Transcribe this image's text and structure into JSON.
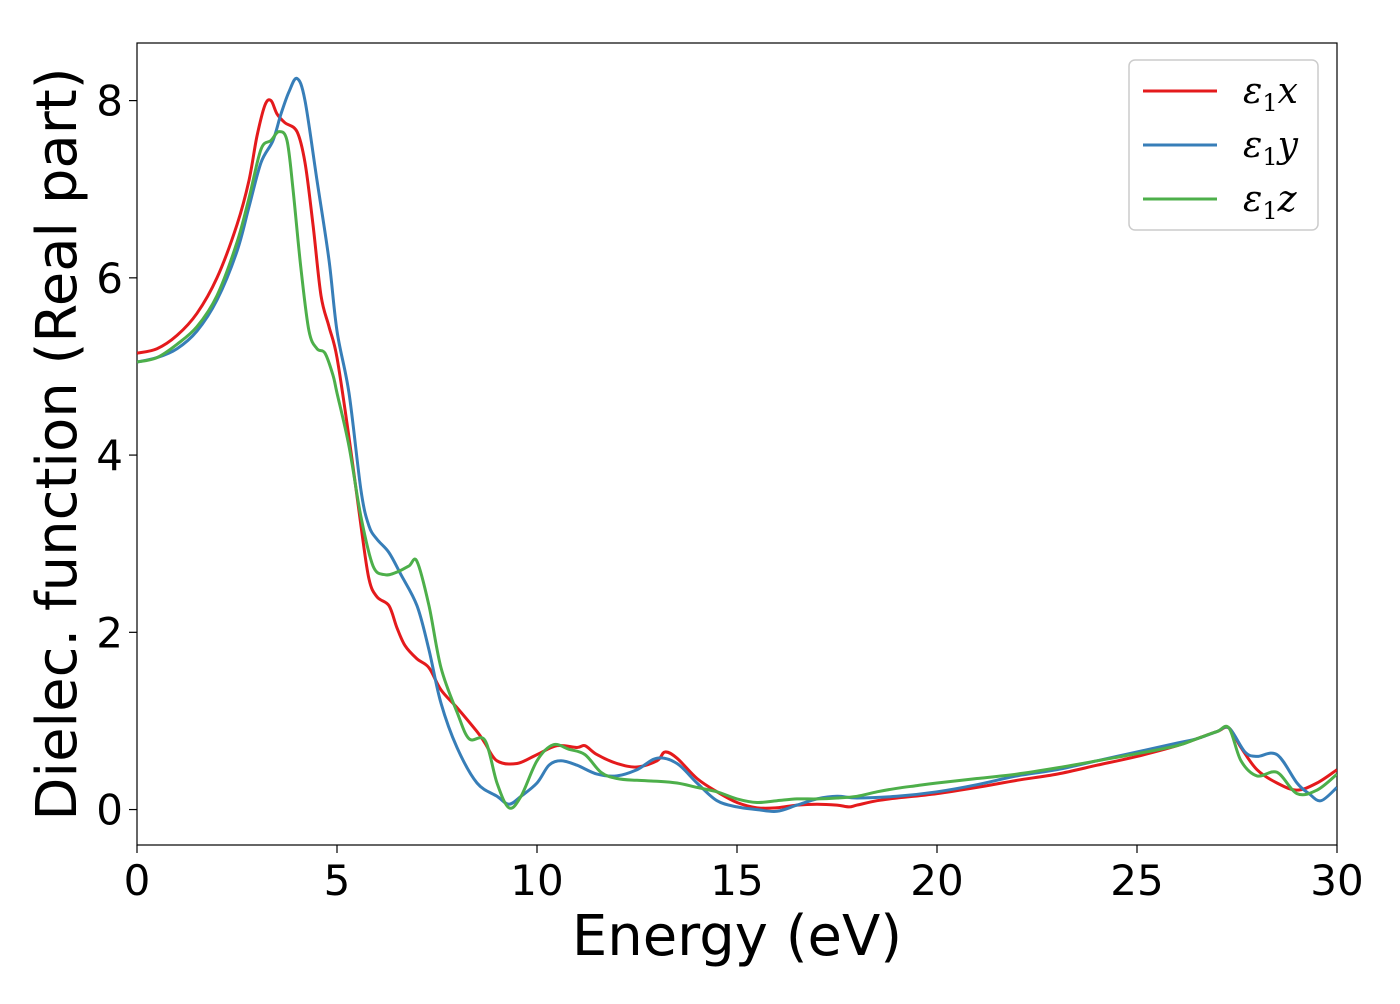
{
  "chart_data": {
    "type": "line",
    "xlabel": "Energy (eV)",
    "ylabel": "Dielec. function (Real part)",
    "xlim": [
      0,
      30
    ],
    "ylim": [
      -0.4,
      8.65
    ],
    "xticks": [
      0,
      5,
      10,
      15,
      20,
      25,
      30
    ],
    "xtick_labels": [
      "0",
      "5",
      "10",
      "15",
      "20",
      "25",
      "30"
    ],
    "yticks": [
      0,
      2,
      4,
      6,
      8
    ],
    "ytick_labels": [
      "0",
      "2",
      "4",
      "6",
      "8"
    ],
    "grid": false,
    "legend_position": "top-right",
    "series": [
      {
        "name": "ε1x",
        "label_base": "ε",
        "label_sub": "1",
        "label_suffix": "x",
        "color": "#e41a1c",
        "x": [
          0,
          0.5,
          1,
          1.5,
          2,
          2.5,
          2.8,
          3.0,
          3.2,
          3.35,
          3.5,
          3.7,
          4.0,
          4.2,
          4.4,
          4.6,
          4.8,
          5.0,
          5.3,
          5.6,
          5.8,
          6.0,
          6.3,
          6.5,
          6.7,
          7.0,
          7.3,
          7.6,
          8.0,
          8.5,
          8.7,
          9.0,
          9.5,
          10.0,
          10.5,
          11.0,
          11.2,
          11.5,
          12.0,
          12.5,
          13.0,
          13.2,
          13.5,
          14.0,
          14.5,
          15.0,
          15.5,
          16.0,
          16.5,
          17.0,
          17.5,
          17.8,
          18.0,
          18.5,
          19.0,
          20.0,
          21.0,
          22.0,
          23.0,
          24.0,
          25.0,
          26.0,
          26.5,
          27.0,
          27.3,
          27.6,
          28.0,
          28.5,
          29.0,
          29.5,
          30.0
        ],
        "values": [
          5.15,
          5.2,
          5.35,
          5.6,
          6.0,
          6.6,
          7.1,
          7.6,
          7.95,
          8.0,
          7.85,
          7.75,
          7.65,
          7.3,
          6.6,
          5.8,
          5.45,
          5.1,
          4.2,
          3.2,
          2.6,
          2.4,
          2.3,
          2.05,
          1.85,
          1.7,
          1.6,
          1.35,
          1.15,
          0.88,
          0.75,
          0.55,
          0.52,
          0.62,
          0.72,
          0.7,
          0.72,
          0.62,
          0.52,
          0.48,
          0.55,
          0.65,
          0.58,
          0.35,
          0.2,
          0.08,
          0.02,
          0.02,
          0.05,
          0.06,
          0.05,
          0.03,
          0.05,
          0.1,
          0.13,
          0.18,
          0.25,
          0.33,
          0.4,
          0.5,
          0.6,
          0.72,
          0.8,
          0.88,
          0.92,
          0.7,
          0.45,
          0.3,
          0.22,
          0.3,
          0.45
        ]
      },
      {
        "name": "ε1y",
        "label_base": "ε",
        "label_sub": "1",
        "label_suffix": "y",
        "color": "#377eb8",
        "x": [
          0,
          0.5,
          1,
          1.5,
          2,
          2.5,
          2.8,
          3.1,
          3.4,
          3.6,
          3.8,
          4.0,
          4.2,
          4.5,
          4.8,
          5.0,
          5.3,
          5.6,
          5.8,
          6.0,
          6.3,
          6.6,
          7.0,
          7.3,
          7.6,
          8.0,
          8.5,
          9.0,
          9.3,
          9.6,
          10.0,
          10.3,
          10.6,
          11.0,
          11.5,
          12.0,
          12.5,
          13.0,
          13.5,
          14.0,
          14.5,
          15.0,
          15.5,
          16.0,
          16.5,
          17.0,
          17.5,
          18.0,
          19.0,
          20.0,
          21.0,
          22.0,
          23.0,
          24.0,
          25.0,
          26.0,
          26.5,
          27.0,
          27.3,
          27.7,
          28.0,
          28.5,
          29.0,
          29.3,
          29.6,
          30.0
        ],
        "values": [
          5.05,
          5.1,
          5.2,
          5.4,
          5.75,
          6.3,
          6.8,
          7.3,
          7.55,
          7.85,
          8.1,
          8.25,
          8.0,
          7.1,
          6.2,
          5.4,
          4.7,
          3.6,
          3.2,
          3.05,
          2.9,
          2.65,
          2.3,
          1.8,
          1.2,
          0.7,
          0.3,
          0.15,
          0.06,
          0.15,
          0.3,
          0.5,
          0.55,
          0.5,
          0.4,
          0.38,
          0.45,
          0.58,
          0.52,
          0.3,
          0.1,
          0.03,
          0.0,
          -0.02,
          0.05,
          0.12,
          0.15,
          0.13,
          0.15,
          0.2,
          0.28,
          0.38,
          0.45,
          0.55,
          0.65,
          0.75,
          0.8,
          0.88,
          0.92,
          0.65,
          0.6,
          0.62,
          0.3,
          0.18,
          0.1,
          0.25
        ]
      },
      {
        "name": "ε1z",
        "label_base": "ε",
        "label_sub": "1",
        "label_suffix": "z",
        "color": "#4daf4a",
        "x": [
          0,
          0.5,
          1,
          1.5,
          2,
          2.5,
          2.8,
          3.1,
          3.35,
          3.55,
          3.75,
          3.9,
          4.1,
          4.3,
          4.5,
          4.7,
          4.9,
          5.0,
          5.3,
          5.6,
          5.9,
          6.2,
          6.5,
          6.8,
          7.0,
          7.3,
          7.6,
          8.0,
          8.3,
          8.7,
          9.0,
          9.3,
          9.6,
          10.0,
          10.4,
          10.8,
          11.2,
          11.6,
          12.0,
          12.5,
          13.0,
          13.5,
          14.0,
          14.5,
          15.0,
          15.5,
          16.0,
          16.5,
          17.0,
          17.5,
          18.0,
          18.5,
          19.0,
          19.5,
          20.0,
          21.0,
          22.0,
          23.0,
          24.0,
          25.0,
          26.0,
          26.5,
          27.0,
          27.3,
          27.6,
          28.0,
          28.5,
          29.0,
          29.5,
          30.0
        ],
        "values": [
          5.05,
          5.1,
          5.25,
          5.45,
          5.8,
          6.4,
          6.9,
          7.45,
          7.55,
          7.65,
          7.55,
          7.0,
          6.1,
          5.4,
          5.2,
          5.15,
          4.9,
          4.7,
          4.1,
          3.3,
          2.75,
          2.65,
          2.68,
          2.75,
          2.8,
          2.3,
          1.6,
          1.1,
          0.8,
          0.78,
          0.3,
          0.02,
          0.15,
          0.55,
          0.73,
          0.68,
          0.62,
          0.42,
          0.35,
          0.33,
          0.32,
          0.3,
          0.25,
          0.2,
          0.12,
          0.08,
          0.1,
          0.12,
          0.12,
          0.13,
          0.15,
          0.2,
          0.24,
          0.27,
          0.3,
          0.35,
          0.4,
          0.47,
          0.55,
          0.63,
          0.72,
          0.8,
          0.88,
          0.92,
          0.55,
          0.38,
          0.42,
          0.18,
          0.22,
          0.4
        ]
      }
    ]
  }
}
